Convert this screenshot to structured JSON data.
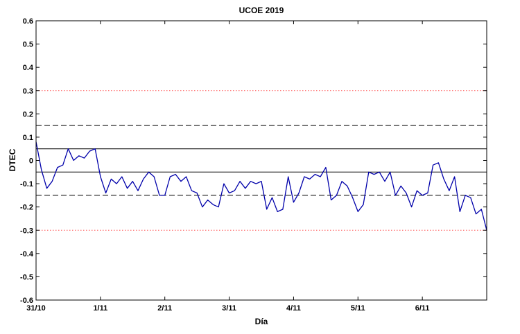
{
  "chart_data": {
    "type": "line",
    "title": "UCOE 2019",
    "xlabel": "Día",
    "ylabel": "DTEC",
    "xlim": [
      0,
      7
    ],
    "ylim": [
      -0.6,
      0.6
    ],
    "x_ticks": [
      0,
      1,
      2,
      3,
      4,
      5,
      6
    ],
    "x_tick_labels": [
      "31/10",
      "1/11",
      "2/11",
      "3/11",
      "4/11",
      "5/11",
      "6/11"
    ],
    "y_ticks": [
      -0.6,
      -0.5,
      -0.4,
      -0.3,
      -0.2,
      -0.1,
      0,
      0.1,
      0.2,
      0.3,
      0.4,
      0.5,
      0.6
    ],
    "y_tick_labels": [
      "-0.6",
      "-0.5",
      "-0.4",
      "-0.3",
      "-0.2",
      "-0.1",
      "0",
      "0.1",
      "0.2",
      "0.3",
      "0.4",
      "0.5",
      "0.6"
    ],
    "grid": false,
    "legend": "none",
    "reference_lines": [
      {
        "y": 0.3,
        "style": "dotted",
        "color": "#ff4d4d"
      },
      {
        "y": -0.3,
        "style": "dotted",
        "color": "#ff4d4d"
      },
      {
        "y": 0.15,
        "style": "dashed",
        "color": "#000000"
      },
      {
        "y": -0.15,
        "style": "dashed",
        "color": "#000000"
      },
      {
        "y": 0.05,
        "style": "solid",
        "color": "#000000"
      },
      {
        "y": -0.05,
        "style": "solid",
        "color": "#000000"
      }
    ],
    "series": [
      {
        "color": "#0000aa",
        "x": [
          0,
          0.083,
          0.167,
          0.25,
          0.333,
          0.417,
          0.5,
          0.583,
          0.667,
          0.75,
          0.833,
          0.917,
          1.0,
          1.083,
          1.167,
          1.25,
          1.333,
          1.417,
          1.5,
          1.583,
          1.667,
          1.75,
          1.833,
          1.917,
          2.0,
          2.083,
          2.167,
          2.25,
          2.333,
          2.417,
          2.5,
          2.583,
          2.667,
          2.75,
          2.833,
          2.917,
          3.0,
          3.083,
          3.167,
          3.25,
          3.333,
          3.417,
          3.5,
          3.583,
          3.667,
          3.75,
          3.833,
          3.917,
          4.0,
          4.083,
          4.167,
          4.25,
          4.333,
          4.417,
          4.5,
          4.583,
          4.667,
          4.75,
          4.833,
          4.917,
          5.0,
          5.083,
          5.167,
          5.25,
          5.333,
          5.417,
          5.5,
          5.583,
          5.667,
          5.75,
          5.833,
          5.917,
          6.0,
          6.083,
          6.167,
          6.25,
          6.333,
          6.417,
          6.5,
          6.583,
          6.667,
          6.75,
          6.833,
          6.917,
          7.0
        ],
        "y": [
          0.08,
          -0.04,
          -0.12,
          -0.09,
          -0.03,
          -0.02,
          0.05,
          0.0,
          0.02,
          0.01,
          0.04,
          0.05,
          -0.07,
          -0.14,
          -0.08,
          -0.1,
          -0.07,
          -0.12,
          -0.09,
          -0.13,
          -0.08,
          -0.05,
          -0.07,
          -0.15,
          -0.15,
          -0.07,
          -0.06,
          -0.09,
          -0.07,
          -0.13,
          -0.14,
          -0.2,
          -0.17,
          -0.19,
          -0.2,
          -0.1,
          -0.14,
          -0.13,
          -0.09,
          -0.12,
          -0.09,
          -0.1,
          -0.09,
          -0.21,
          -0.16,
          -0.22,
          -0.21,
          -0.07,
          -0.18,
          -0.14,
          -0.07,
          -0.08,
          -0.06,
          -0.07,
          -0.03,
          -0.17,
          -0.15,
          -0.09,
          -0.11,
          -0.16,
          -0.22,
          -0.19,
          -0.05,
          -0.06,
          -0.05,
          -0.09,
          -0.05,
          -0.15,
          -0.11,
          -0.14,
          -0.2,
          -0.13,
          -0.15,
          -0.14,
          -0.02,
          -0.01,
          -0.08,
          -0.13,
          -0.07,
          -0.22,
          -0.15,
          -0.16,
          -0.23,
          -0.21,
          -0.3
        ]
      }
    ]
  }
}
